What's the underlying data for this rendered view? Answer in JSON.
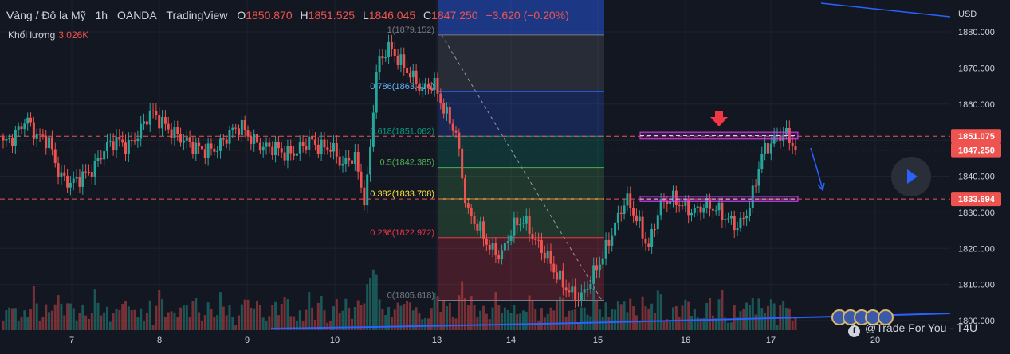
{
  "header": {
    "symbol": "Vàng / Đô la Mỹ",
    "interval": "1h",
    "broker": "OANDA",
    "platform": "TradingView",
    "o_label": "O",
    "o_value": "1850.870",
    "h_label": "H",
    "h_value": "1851.525",
    "l_label": "L",
    "l_value": "1846.045",
    "c_label": "C",
    "c_value": "1847.250",
    "change": "−3.620 (−0.20%)"
  },
  "volume": {
    "label": "Khối lượng",
    "value": "3.026K"
  },
  "watermark": "@Trade For You - T4U",
  "colors": {
    "background": "#131722",
    "up": "#26a69a",
    "down": "#ef5350",
    "text": "#d1d4dc",
    "grid": "#1e222d",
    "fib_blue": "#2962ff"
  },
  "icons": [
    "play-icon",
    "facebook-icon",
    "us-flag-icon"
  ],
  "chart_data": {
    "type": "candlestick",
    "currency": "USD",
    "ylim": [
      1800,
      1885
    ],
    "y_ticks": [
      "1880.000",
      "1870.000",
      "1860.000",
      "1850.000",
      "1840.000",
      "1830.000",
      "1820.000",
      "1810.000",
      "1800.000"
    ],
    "x_ticks": [
      "7",
      "8",
      "9",
      "10",
      "13",
      "14",
      "15",
      "16",
      "17",
      "20"
    ],
    "price_labels": [
      {
        "value": 1851.075,
        "text": "1851.075",
        "color": "#ef5350"
      },
      {
        "value": 1847.25,
        "text": "1847.250",
        "color": "#ef5350"
      },
      {
        "value": 1833.694,
        "text": "1833.694",
        "color": "#ef5350"
      }
    ],
    "horizontal_lines": [
      1851.075,
      1833.694
    ],
    "fib_levels": [
      {
        "ratio": "1",
        "price": 1879.152,
        "text": "1(1879.152)"
      },
      {
        "ratio": "0.786",
        "price": 1863.416,
        "text": "0.786(1863.416)"
      },
      {
        "ratio": "0.618",
        "price": 1851.062,
        "text": "0.618(1851.062)"
      },
      {
        "ratio": "0.5",
        "price": 1842.385,
        "text": "0.5(1842.385)"
      },
      {
        "ratio": "0.382",
        "price": 1833.708,
        "text": "0.382(1833.708)"
      },
      {
        "ratio": "0.236",
        "price": 1822.972,
        "text": "0.236(1822.972)"
      },
      {
        "ratio": "0",
        "price": 1805.618,
        "text": "0(1805.618)"
      }
    ],
    "zones": [
      {
        "from": 1850.3,
        "to": 1852.2
      },
      {
        "from": 1833.0,
        "to": 1834.4
      }
    ],
    "key_prices": [
      1849,
      1851,
      1856,
      1851,
      1850,
      1840,
      1838,
      1840,
      1842,
      1848,
      1850,
      1848,
      1852,
      1858,
      1855,
      1852,
      1850,
      1848,
      1847,
      1848,
      1852,
      1854,
      1850,
      1848,
      1848,
      1846,
      1847,
      1850,
      1848,
      1848,
      1843,
      1846,
      1832,
      1870,
      1876,
      1872,
      1868,
      1864,
      1866,
      1858,
      1852,
      1830,
      1826,
      1820,
      1818,
      1826,
      1828,
      1822,
      1818,
      1812,
      1808,
      1806,
      1812,
      1818,
      1826,
      1834,
      1828,
      1820,
      1832,
      1834,
      1832,
      1830,
      1832,
      1831,
      1828,
      1826,
      1832,
      1846,
      1850,
      1852,
      1848
    ]
  }
}
